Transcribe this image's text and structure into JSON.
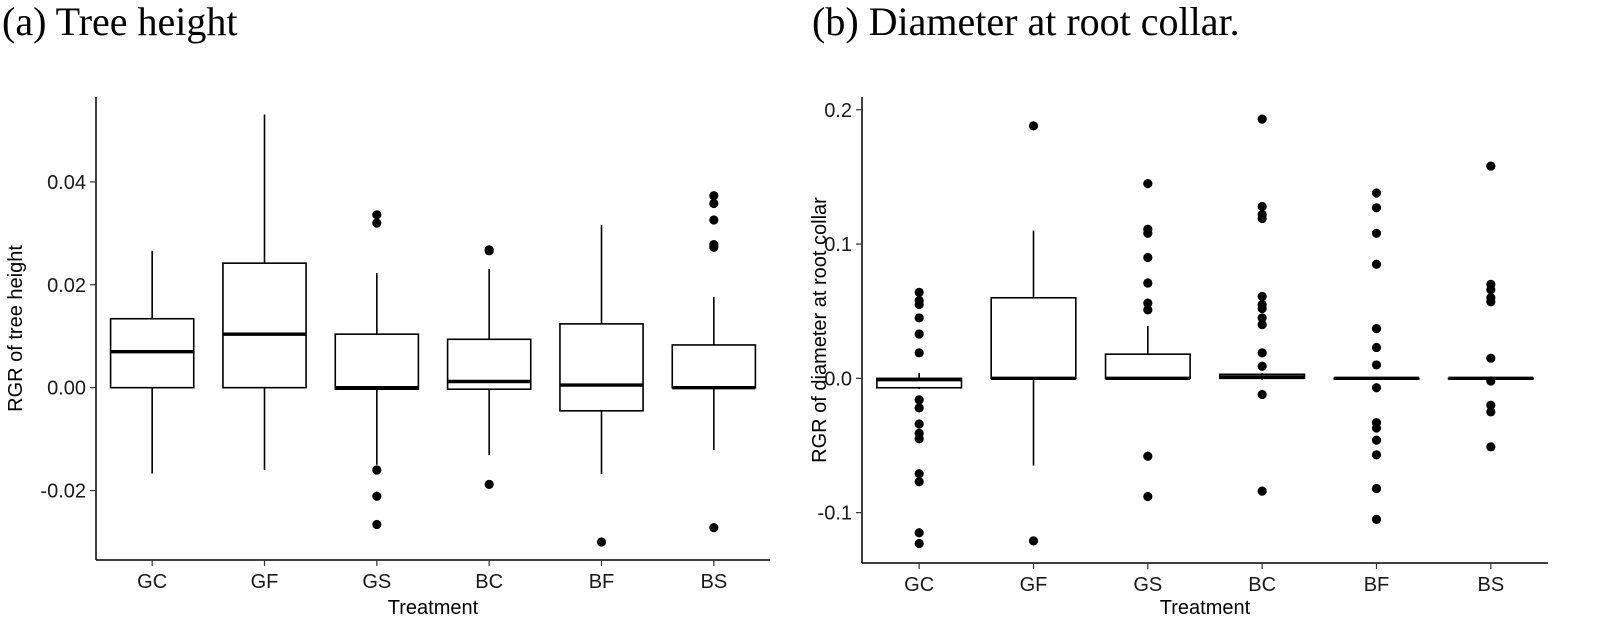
{
  "chart_data": [
    {
      "type": "boxplot",
      "title": "(a) Tree height",
      "xlabel": "Treatment",
      "ylabel": "RGR of tree height",
      "categories": [
        "GC",
        "GF",
        "GS",
        "BC",
        "BF",
        "BS"
      ],
      "ylim": [
        -0.0335,
        0.0565
      ],
      "yticks": [
        -0.02,
        0.0,
        0.02,
        0.04
      ],
      "ytick_labels": [
        "-0.02",
        "0.00",
        "0.02",
        "0.04"
      ],
      "boxes": [
        {
          "category": "GC",
          "whisker_low": -0.0167,
          "q1": 0.0,
          "median": 0.007,
          "q3": 0.0134,
          "whisker_high": 0.0266,
          "outliers": []
        },
        {
          "category": "GF",
          "whisker_low": -0.016,
          "q1": 0.0,
          "median": 0.0104,
          "q3": 0.0242,
          "whisker_high": 0.0531,
          "outliers": []
        },
        {
          "category": "GS",
          "whisker_low": -0.015,
          "q1": -0.0003,
          "median": 0.0,
          "q3": 0.0104,
          "whisker_high": 0.0223,
          "outliers": [
            0.0336,
            0.032,
            -0.016,
            -0.0211,
            -0.0266
          ]
        },
        {
          "category": "BC",
          "whisker_low": -0.0131,
          "q1": -0.0003,
          "median": 0.0012,
          "q3": 0.0094,
          "whisker_high": 0.0231,
          "outliers": [
            0.0268,
            0.0266,
            -0.0188
          ]
        },
        {
          "category": "BF",
          "whisker_low": -0.0168,
          "q1": -0.0045,
          "median": 0.0005,
          "q3": 0.0124,
          "whisker_high": 0.0316,
          "outliers": [
            -0.03
          ]
        },
        {
          "category": "BS",
          "whisker_low": -0.0121,
          "q1": 0.0,
          "median": 0.0,
          "q3": 0.0083,
          "whisker_high": 0.0176,
          "outliers": [
            0.0373,
            0.0358,
            0.0326,
            0.0278,
            0.0273,
            -0.0272
          ]
        }
      ]
    },
    {
      "type": "boxplot",
      "title": "(b) Diameter at root collar.",
      "xlabel": "Treatment",
      "ylabel": "RGR of diameter at root collar",
      "categories": [
        "GC",
        "GF",
        "GS",
        "BC",
        "BF",
        "BS"
      ],
      "ylim": [
        -0.1375,
        0.2095
      ],
      "yticks": [
        -0.1,
        0.0,
        0.1,
        0.2
      ],
      "ytick_labels": [
        "-0.1",
        "0.0",
        "0.1",
        "0.2"
      ],
      "boxes": [
        {
          "category": "GC",
          "whisker_low": -0.008,
          "q1": -0.007,
          "median": -0.001,
          "q3": 0.0,
          "whisker_high": 0.004,
          "outliers": [
            0.064,
            0.058,
            0.055,
            0.045,
            0.033,
            0.019,
            -0.016,
            -0.022,
            -0.034,
            -0.041,
            -0.045,
            -0.071,
            -0.077,
            -0.115,
            -0.123
          ]
        },
        {
          "category": "GF",
          "whisker_low": -0.065,
          "q1": 0.0,
          "median": 0.0,
          "q3": 0.06,
          "whisker_high": 0.11,
          "outliers": [
            0.188,
            -0.121
          ]
        },
        {
          "category": "GS",
          "whisker_low": 0.0,
          "q1": 0.0,
          "median": 0.0,
          "q3": 0.018,
          "whisker_high": 0.039,
          "outliers": [
            0.145,
            0.111,
            0.108,
            0.09,
            0.071,
            0.056,
            0.051,
            -0.058,
            -0.088
          ]
        },
        {
          "category": "BC",
          "whisker_low": -0.001,
          "q1": 0.0,
          "median": 0.001,
          "q3": 0.003,
          "whisker_high": 0.004,
          "outliers": [
            0.193,
            0.128,
            0.122,
            0.119,
            0.061,
            0.055,
            0.052,
            0.045,
            0.04,
            0.019,
            0.009,
            -0.012,
            -0.084
          ]
        },
        {
          "category": "BF",
          "whisker_low": 0.0,
          "q1": 0.0,
          "median": 0.0,
          "q3": 0.0,
          "whisker_high": 0.0,
          "outliers": [
            0.138,
            0.127,
            0.108,
            0.085,
            0.037,
            0.023,
            0.01,
            -0.007,
            -0.033,
            -0.037,
            -0.046,
            -0.057,
            -0.082,
            -0.105
          ]
        },
        {
          "category": "BS",
          "whisker_low": 0.0,
          "q1": 0.0,
          "median": 0.0,
          "q3": 0.0,
          "whisker_high": 0.0,
          "outliers": [
            0.158,
            0.07,
            0.066,
            0.06,
            0.057,
            0.015,
            -0.002,
            -0.02,
            -0.025,
            -0.051
          ]
        }
      ]
    }
  ]
}
